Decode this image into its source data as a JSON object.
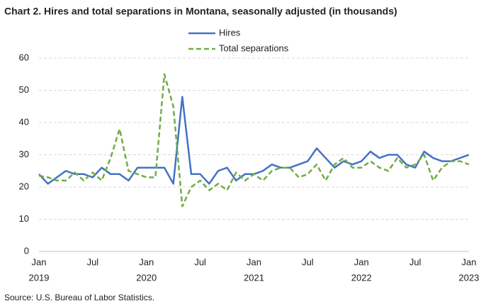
{
  "chart_data": {
    "type": "line",
    "title": "Chart 2. Hires and total separations in Montana, seasonally adjusted (in thousands)",
    "source": "Source: U.S. Bureau of Labor Statistics.",
    "categories": [
      "Jan",
      null,
      null,
      null,
      null,
      null,
      "Jul",
      null,
      null,
      null,
      null,
      null,
      "Jan",
      null,
      null,
      null,
      null,
      null,
      "Jul",
      null,
      null,
      null,
      null,
      null,
      "Jan",
      null,
      null,
      null,
      null,
      null,
      "Jul",
      null,
      null,
      null,
      null,
      null,
      "Jan",
      null,
      null,
      null,
      null,
      null,
      "Jul",
      null,
      null,
      null,
      null,
      null,
      "Jan"
    ],
    "category_years": [
      "2019",
      null,
      null,
      null,
      null,
      null,
      null,
      null,
      null,
      null,
      null,
      null,
      "2020",
      null,
      null,
      null,
      null,
      null,
      null,
      null,
      null,
      null,
      null,
      null,
      "2021",
      null,
      null,
      null,
      null,
      null,
      null,
      null,
      null,
      null,
      null,
      null,
      "2022",
      null,
      null,
      null,
      null,
      null,
      null,
      null,
      null,
      null,
      null,
      null,
      "2023"
    ],
    "series": [
      {
        "name": "Hires",
        "color": "#4472c4",
        "dash": false,
        "values": [
          24,
          21,
          23,
          25,
          24,
          24,
          23,
          26,
          24,
          24,
          22,
          26,
          26,
          26,
          26,
          21,
          48,
          24,
          24,
          21,
          25,
          26,
          22,
          24,
          24,
          25,
          27,
          26,
          26,
          27,
          28,
          32,
          29,
          26,
          28,
          27,
          28,
          31,
          29,
          30,
          30,
          27,
          26,
          31,
          29,
          28,
          28,
          29,
          30
        ]
      },
      {
        "name": "Total separations",
        "color": "#70ad47",
        "dash": true,
        "values": [
          23.5,
          23,
          22,
          22,
          24.5,
          22,
          24.5,
          22,
          29,
          38,
          25,
          24,
          23,
          23,
          55,
          45,
          14,
          20,
          22,
          19,
          21,
          19,
          24.5,
          22,
          24,
          22,
          25,
          26,
          26,
          23,
          24,
          27,
          22,
          27,
          29,
          26,
          26,
          28,
          26,
          25,
          29,
          26,
          27,
          30,
          22,
          26,
          28,
          28,
          27
        ]
      }
    ],
    "ylim": [
      0,
      60
    ],
    "yticks": [
      0,
      10,
      20,
      30,
      40,
      50,
      60
    ],
    "grid": true,
    "legend": "top"
  }
}
